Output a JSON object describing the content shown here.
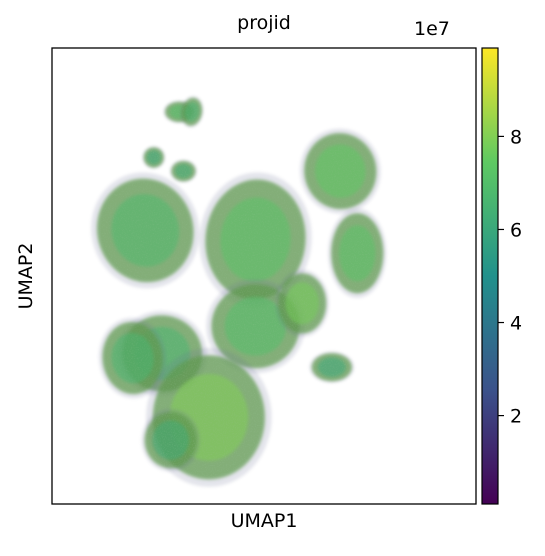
{
  "chart_data": {
    "type": "scatter",
    "title": "projid",
    "xlabel": "UMAP1",
    "ylabel": "UMAP2",
    "grid": false,
    "legend": "none",
    "colorbar": {
      "colormap": "viridis",
      "range": [
        1000000,
        99000000
      ],
      "ticks": [
        20000000,
        40000000,
        60000000,
        80000000
      ],
      "tick_labels": [
        "2",
        "4",
        "6",
        "8"
      ],
      "exponent_label": "1e7",
      "colors": [
        "#440154",
        "#3b528b",
        "#21918c",
        "#5ec962",
        "#fde725"
      ]
    },
    "point_colors": {
      "dominant": "#5e9a4e",
      "secondary": "#6b6f95",
      "highlight": "#9fd24a"
    },
    "clusters": [
      {
        "label": "",
        "x": 3.0,
        "y": 8.6,
        "value": 70000000
      },
      {
        "label": "",
        "x": 3.3,
        "y": 8.6,
        "value": 65000000
      },
      {
        "label": "",
        "x": 3.1,
        "y": 7.3,
        "value": 62000000
      },
      {
        "label": "",
        "x": 2.4,
        "y": 7.6,
        "value": 60000000
      },
      {
        "label": "",
        "x": 2.2,
        "y": 6.0,
        "value": 68000000
      },
      {
        "label": "",
        "x": 4.8,
        "y": 5.8,
        "value": 72000000
      },
      {
        "label": "",
        "x": 6.8,
        "y": 7.3,
        "value": 74000000
      },
      {
        "label": "",
        "x": 4.8,
        "y": 3.9,
        "value": 70000000
      },
      {
        "label": "",
        "x": 2.6,
        "y": 3.3,
        "value": 66000000
      },
      {
        "label": "",
        "x": 5.9,
        "y": 4.4,
        "value": 78000000
      },
      {
        "label": "",
        "x": 7.2,
        "y": 5.5,
        "value": 72000000
      },
      {
        "label": "",
        "x": 1.9,
        "y": 3.2,
        "value": 66000000
      },
      {
        "label": "",
        "x": 3.7,
        "y": 1.9,
        "value": 80000000
      },
      {
        "label": "",
        "x": 2.8,
        "y": 1.4,
        "value": 62000000
      },
      {
        "label": "",
        "x": 6.6,
        "y": 3.0,
        "value": 60000000
      }
    ]
  }
}
